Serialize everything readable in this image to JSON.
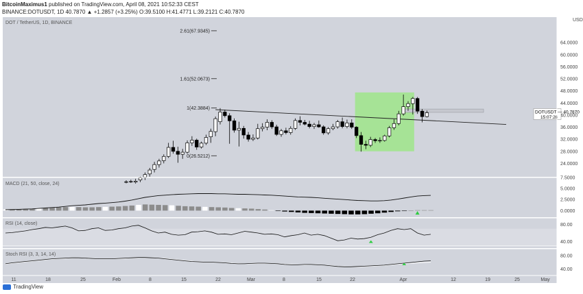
{
  "header": {
    "author": "BitcoinMaximus1",
    "published_text": "published on TradingView.com, April 08, 2021 10:52:33 CEST",
    "symbol_line": "BINANCE:DOTUSDT, 1D",
    "price_line": "40.7870 ▲ +1.2857 (+3.25%) O:39.5100 H:41.4771 L:39.2121 C:40.7870"
  },
  "chart_data": {
    "type": "candlestick",
    "title": "DOT / TetherUS, 1D, BINANCE",
    "price_axis": {
      "unit": "USDT",
      "ylim": [
        20,
        72
      ],
      "tick_labels": [
        "64.0000",
        "60.0000",
        "56.0000",
        "52.0000",
        "48.0000",
        "44.0000",
        "40.0000",
        "36.0000",
        "32.0000",
        "28.0000",
        "24.0000"
      ],
      "tick_values": [
        64,
        60,
        56,
        52,
        48,
        44,
        40,
        36,
        32,
        28,
        24
      ]
    },
    "last_price_tag": {
      "symbol": "DOTUSDT",
      "price": "40.7870",
      "countdown": "15:07:28",
      "value": 40.787
    },
    "fib_levels": [
      {
        "label": "2.61(67.9345)",
        "value": 67.9345
      },
      {
        "label": "1.61(52.0673)",
        "value": 52.0673
      },
      {
        "label": "1(42.3884)",
        "value": 42.3884
      },
      {
        "label": "0(26.5212)",
        "value": 26.5212
      }
    ],
    "x_axis_labels": [
      "11",
      "18",
      "25",
      "Feb",
      "8",
      "15",
      "22",
      "Mar",
      "8",
      "15",
      "22",
      "Apr",
      "12",
      "19",
      "25",
      "May"
    ],
    "candles": [
      {
        "o": 17.8,
        "h": 18.4,
        "l": 17.4,
        "c": 17.9
      },
      {
        "o": 17.9,
        "h": 18.6,
        "l": 17.5,
        "c": 18.0
      },
      {
        "o": 17.8,
        "h": 18.9,
        "l": 17.3,
        "c": 18.1
      },
      {
        "o": 18.5,
        "h": 19.6,
        "l": 17.8,
        "c": 19.2
      },
      {
        "o": 19.4,
        "h": 21.0,
        "l": 18.5,
        "c": 20.3
      },
      {
        "o": 20.5,
        "h": 22.5,
        "l": 19.6,
        "c": 21.8
      },
      {
        "o": 22.0,
        "h": 24.5,
        "l": 21.0,
        "c": 23.6
      },
      {
        "o": 23.6,
        "h": 25.5,
        "l": 22.6,
        "c": 24.8
      },
      {
        "o": 24.9,
        "h": 27.0,
        "l": 24.0,
        "c": 26.3
      },
      {
        "o": 26.3,
        "h": 30.8,
        "l": 25.8,
        "c": 29.3
      },
      {
        "o": 29.3,
        "h": 31.5,
        "l": 27.2,
        "c": 28.0
      },
      {
        "o": 28.0,
        "h": 29.5,
        "l": 24.2,
        "c": 27.0
      },
      {
        "o": 27.0,
        "h": 28.8,
        "l": 25.5,
        "c": 27.7
      },
      {
        "o": 27.7,
        "h": 31.6,
        "l": 27.2,
        "c": 30.8
      },
      {
        "o": 30.8,
        "h": 33.0,
        "l": 29.8,
        "c": 31.7
      },
      {
        "o": 31.7,
        "h": 32.2,
        "l": 28.5,
        "c": 29.4
      },
      {
        "o": 29.4,
        "h": 31.2,
        "l": 28.9,
        "c": 30.7
      },
      {
        "o": 30.7,
        "h": 33.5,
        "l": 30.1,
        "c": 32.6
      },
      {
        "o": 32.8,
        "h": 35.5,
        "l": 30.8,
        "c": 34.6
      },
      {
        "o": 34.5,
        "h": 39.5,
        "l": 33.0,
        "c": 38.8
      },
      {
        "o": 37.8,
        "h": 42.3,
        "l": 36.9,
        "c": 41.0
      },
      {
        "o": 41.0,
        "h": 41.8,
        "l": 39.2,
        "c": 39.8
      },
      {
        "o": 39.8,
        "h": 40.6,
        "l": 30.5,
        "c": 38.1
      },
      {
        "o": 38.1,
        "h": 38.9,
        "l": 34.2,
        "c": 35.0
      },
      {
        "o": 35.0,
        "h": 37.8,
        "l": 29.6,
        "c": 35.6
      },
      {
        "o": 35.6,
        "h": 36.4,
        "l": 32.2,
        "c": 33.4
      },
      {
        "o": 33.4,
        "h": 34.4,
        "l": 31.2,
        "c": 32.0
      },
      {
        "o": 32.0,
        "h": 33.6,
        "l": 31.4,
        "c": 32.4
      },
      {
        "o": 32.4,
        "h": 37.1,
        "l": 31.9,
        "c": 35.5
      },
      {
        "o": 35.5,
        "h": 37.3,
        "l": 34.6,
        "c": 36.0
      },
      {
        "o": 36.0,
        "h": 38.6,
        "l": 35.0,
        "c": 37.6
      },
      {
        "o": 37.6,
        "h": 38.3,
        "l": 35.4,
        "c": 36.1
      },
      {
        "o": 36.1,
        "h": 36.8,
        "l": 33.1,
        "c": 33.6
      },
      {
        "o": 33.6,
        "h": 35.4,
        "l": 32.8,
        "c": 34.8
      },
      {
        "o": 34.8,
        "h": 35.8,
        "l": 33.6,
        "c": 34.2
      },
      {
        "o": 34.2,
        "h": 36.3,
        "l": 33.5,
        "c": 35.6
      },
      {
        "o": 35.6,
        "h": 38.9,
        "l": 35.1,
        "c": 38.2
      },
      {
        "o": 38.2,
        "h": 39.6,
        "l": 36.6,
        "c": 37.6
      },
      {
        "o": 37.6,
        "h": 38.4,
        "l": 36.6,
        "c": 37.0
      },
      {
        "o": 37.0,
        "h": 38.1,
        "l": 35.6,
        "c": 36.2
      },
      {
        "o": 36.2,
        "h": 37.4,
        "l": 35.4,
        "c": 36.8
      },
      {
        "o": 36.8,
        "h": 38.2,
        "l": 35.8,
        "c": 36.1
      },
      {
        "o": 36.1,
        "h": 36.6,
        "l": 33.5,
        "c": 34.1
      },
      {
        "o": 34.1,
        "h": 36.0,
        "l": 33.5,
        "c": 35.5
      },
      {
        "o": 35.5,
        "h": 37.1,
        "l": 35.0,
        "c": 36.1
      },
      {
        "o": 36.1,
        "h": 38.4,
        "l": 35.5,
        "c": 37.8
      },
      {
        "o": 37.8,
        "h": 39.2,
        "l": 35.6,
        "c": 36.2
      },
      {
        "o": 36.2,
        "h": 38.5,
        "l": 35.6,
        "c": 37.4
      },
      {
        "o": 37.4,
        "h": 38.6,
        "l": 35.4,
        "c": 36.0
      },
      {
        "o": 36.0,
        "h": 36.3,
        "l": 32.4,
        "c": 33.2
      },
      {
        "o": 33.2,
        "h": 34.4,
        "l": 27.9,
        "c": 30.3
      },
      {
        "o": 30.3,
        "h": 31.5,
        "l": 28.7,
        "c": 30.0
      },
      {
        "o": 30.0,
        "h": 32.8,
        "l": 29.4,
        "c": 31.9
      },
      {
        "o": 31.9,
        "h": 32.4,
        "l": 30.8,
        "c": 31.5
      },
      {
        "o": 31.5,
        "h": 32.6,
        "l": 30.8,
        "c": 31.6
      },
      {
        "o": 31.6,
        "h": 33.5,
        "l": 31.2,
        "c": 33.1
      },
      {
        "o": 33.1,
        "h": 36.4,
        "l": 32.6,
        "c": 35.8
      },
      {
        "o": 35.8,
        "h": 38.6,
        "l": 35.1,
        "c": 37.2
      },
      {
        "o": 37.2,
        "h": 41.4,
        "l": 36.6,
        "c": 40.4
      },
      {
        "o": 40.4,
        "h": 46.8,
        "l": 39.8,
        "c": 42.8
      },
      {
        "o": 42.8,
        "h": 44.6,
        "l": 41.4,
        "c": 43.8
      },
      {
        "o": 43.8,
        "h": 46.0,
        "l": 40.2,
        "c": 45.5
      },
      {
        "o": 45.5,
        "h": 46.0,
        "l": 40.4,
        "c": 41.3
      },
      {
        "o": 41.3,
        "h": 42.0,
        "l": 37.6,
        "c": 39.5
      },
      {
        "o": 39.5,
        "h": 41.48,
        "l": 39.21,
        "c": 40.787
      }
    ],
    "indicators": {
      "macd": {
        "label": "MACD (21, 50, close, 24)",
        "tick_labels": [
          "7.5000",
          "5.0000",
          "2.5000",
          "0.0000"
        ],
        "tick_values": [
          7.5,
          5,
          2.5,
          0
        ],
        "ylim": [
          -1.5,
          7.5
        ],
        "line": [
          0.2,
          0.25,
          0.3,
          0.35,
          0.4,
          0.5,
          0.6,
          0.7,
          0.8,
          0.95,
          1.1,
          1.2,
          1.3,
          1.45,
          1.6,
          1.7,
          1.8,
          1.95,
          2.15,
          2.4,
          2.7,
          3.0,
          3.2,
          3.4,
          3.5,
          3.6,
          3.7,
          3.75,
          3.8,
          3.85,
          3.85,
          3.85,
          3.8,
          3.8,
          3.75,
          3.7,
          3.7,
          3.65,
          3.6,
          3.55,
          3.5,
          3.4,
          3.3,
          3.2,
          3.1,
          3.05,
          3.0,
          2.9,
          2.8,
          2.7,
          2.6,
          2.5,
          2.4,
          2.3,
          2.25,
          2.2,
          2.2,
          2.25,
          2.4,
          2.6,
          2.85,
          3.1,
          3.3,
          3.4,
          3.45
        ],
        "histogram": [
          0.3,
          0.3,
          0.35,
          0.4,
          0.45,
          0.55,
          0.6,
          0.7,
          0.75,
          0.8,
          0.85,
          0.8,
          0.75,
          0.75,
          0.8,
          0.85,
          0.9,
          0.95,
          1.05,
          1.15,
          1.3,
          1.4,
          1.35,
          1.3,
          1.25,
          1.2,
          1.1,
          1.0,
          0.95,
          0.9,
          0.85,
          0.8,
          0.75,
          0.7,
          0.6,
          0.55,
          0.5,
          0.45,
          0.35,
          0.25,
          0.1,
          -0.1,
          -0.2,
          -0.3,
          -0.4,
          -0.5,
          -0.55,
          -0.6,
          -0.65,
          -0.7,
          -0.75,
          -0.8,
          -0.85,
          -0.85,
          -0.8,
          -0.7,
          -0.6,
          -0.45,
          -0.3,
          -0.15,
          -0.05,
          0.05,
          0.1,
          0.1,
          0.1
        ]
      },
      "rsi": {
        "label": "RSI (14, close)",
        "tick_labels": [
          "80.00",
          "40.00"
        ],
        "tick_values": [
          80,
          40
        ],
        "ylim": [
          25,
          95
        ],
        "band": [
          70,
          30
        ],
        "values": [
          60,
          61,
          63,
          65,
          68,
          70,
          73,
          72,
          74,
          76,
          72,
          65,
          66,
          70,
          72,
          66,
          67,
          70,
          72,
          76,
          78,
          72,
          65,
          60,
          62,
          57,
          55,
          56,
          62,
          63,
          65,
          62,
          57,
          58,
          56,
          60,
          64,
          62,
          60,
          57,
          58,
          56,
          51,
          54,
          56,
          60,
          55,
          57,
          54,
          48,
          42,
          44,
          48,
          46,
          47,
          50,
          56,
          60,
          66,
          70,
          68,
          70,
          60,
          55,
          57
        ]
      },
      "stoch_rsi": {
        "label": "Stoch RSI (3, 3, 14, 14)",
        "tick_labels": [
          "80.00",
          "40.00"
        ],
        "tick_values": [
          80,
          40
        ],
        "ylim": [
          20,
          100
        ],
        "k": [
          55,
          58,
          60,
          62,
          64,
          66,
          68,
          70,
          71,
          72,
          73,
          73,
          72,
          71,
          70,
          70,
          70,
          71,
          72,
          73,
          74,
          74,
          73,
          72,
          70,
          68,
          66,
          64,
          62,
          61,
          60,
          60,
          59,
          58,
          56,
          55,
          55,
          56,
          57,
          57,
          56,
          55,
          53,
          52,
          52,
          53,
          53,
          52,
          51,
          49,
          47,
          46,
          46,
          47,
          48,
          49,
          50,
          51,
          53,
          55,
          57,
          59,
          61,
          63,
          64
        ],
        "d": [
          54,
          57,
          59,
          61,
          63,
          65,
          67,
          69,
          70,
          71,
          72,
          73,
          72,
          71,
          70,
          70,
          70,
          70,
          71,
          72,
          73,
          74,
          73,
          72,
          71,
          69,
          67,
          65,
          63,
          61,
          60,
          60,
          59,
          58,
          57,
          56,
          55,
          55,
          56,
          56,
          56,
          55,
          54,
          53,
          52,
          52,
          53,
          52,
          51,
          50,
          48,
          47,
          46,
          46,
          47,
          48,
          49,
          50,
          52,
          54,
          55,
          56,
          58,
          59,
          60
        ]
      }
    }
  },
  "footer": {
    "brand": "TradingView"
  },
  "colors": {
    "background": "#d1d4dc",
    "bull_body": "#ffffff",
    "bear_body": "#000000",
    "candle_outline": "#000000",
    "highlight_box": "#9fe58a",
    "arrow_green": "#2ecc40"
  }
}
